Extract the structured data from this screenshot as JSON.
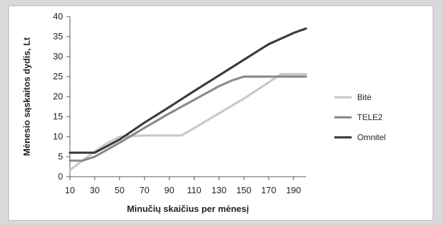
{
  "chart_data": {
    "type": "line",
    "xlabel": "Minučių skaičius per mėnesį",
    "ylabel": "Mėnesio sąskaitos dydis, Lt",
    "ylim": [
      0,
      40
    ],
    "yticks": [
      0,
      5,
      10,
      15,
      20,
      25,
      30,
      35,
      40
    ],
    "xlim": [
      10,
      200
    ],
    "xticks": [
      10,
      30,
      50,
      70,
      90,
      110,
      130,
      150,
      170,
      190
    ],
    "grid": false,
    "legend_position": "right",
    "series": [
      {
        "name": "Bitė",
        "color": "#c8c8c8",
        "points": [
          [
            10,
            1.6
          ],
          [
            20,
            4
          ],
          [
            30,
            6.3
          ],
          [
            40,
            8.4
          ],
          [
            50,
            10
          ],
          [
            70,
            10.3
          ],
          [
            90,
            10.3
          ],
          [
            100,
            10.3
          ],
          [
            150,
            19.5
          ],
          [
            180,
            25.6
          ],
          [
            200,
            25.6
          ]
        ]
      },
      {
        "name": "TELE2",
        "color": "#8a8a8a",
        "points": [
          [
            10,
            4
          ],
          [
            20,
            4
          ],
          [
            30,
            5
          ],
          [
            50,
            8.5
          ],
          [
            70,
            12.2
          ],
          [
            90,
            15.8
          ],
          [
            110,
            19.2
          ],
          [
            130,
            22.6
          ],
          [
            140,
            24
          ],
          [
            150,
            25
          ],
          [
            170,
            25
          ],
          [
            200,
            25
          ]
        ]
      },
      {
        "name": "Omnitel",
        "color": "#3a3a3a",
        "points": [
          [
            10,
            6
          ],
          [
            20,
            6
          ],
          [
            30,
            6
          ],
          [
            50,
            9.3
          ],
          [
            70,
            13.5
          ],
          [
            90,
            17.4
          ],
          [
            110,
            21.4
          ],
          [
            130,
            25.3
          ],
          [
            150,
            29.2
          ],
          [
            170,
            33.1
          ],
          [
            190,
            35.9
          ],
          [
            200,
            37
          ]
        ]
      }
    ]
  }
}
